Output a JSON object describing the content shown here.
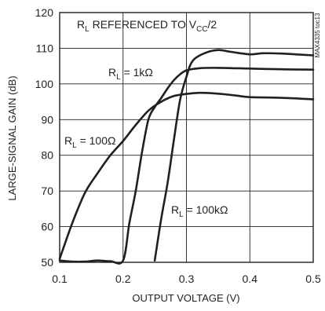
{
  "chart_data": {
    "type": "line",
    "xlabel": "OUTPUT VOLTAGE (V)",
    "ylabel": "LARGE-SIGNAL GAIN (dB)",
    "xlim": [
      0.1,
      0.5
    ],
    "ylim": [
      50,
      120
    ],
    "x_ticks": [
      "0.1",
      "0.2",
      "0.3",
      "0.4",
      "0.5"
    ],
    "y_ticks": [
      "50",
      "60",
      "70",
      "80",
      "90",
      "100",
      "110",
      "120"
    ],
    "grid": true,
    "side_label": "MAX4335 toc13",
    "annotation": {
      "r": "R",
      "r_sub": "L",
      "middle": " REFERENCED TO V",
      "v_sub": "CC",
      "tail": "/2"
    },
    "series": [
      {
        "label_main": "R",
        "label_sub": "L",
        "label_value": " = 100Ω",
        "color": "#231f20",
        "x": [
          0.1,
          0.12,
          0.14,
          0.16,
          0.18,
          0.2,
          0.22,
          0.24,
          0.26,
          0.28,
          0.3,
          0.32,
          0.34,
          0.36,
          0.38,
          0.4,
          0.45,
          0.5
        ],
        "y": [
          51,
          61,
          69.5,
          75,
          80,
          84,
          88.5,
          92.5,
          95,
          96.6,
          97.2,
          97.5,
          97.4,
          97.1,
          96.7,
          96.3,
          96.1,
          95.7
        ]
      },
      {
        "label_main": "R",
        "label_sub": "L",
        "label_value": " = 1kΩ",
        "color": "#231f20",
        "x": [
          0.1,
          0.12,
          0.14,
          0.16,
          0.18,
          0.2,
          0.21,
          0.22,
          0.23,
          0.24,
          0.25,
          0.26,
          0.27,
          0.28,
          0.29,
          0.3,
          0.32,
          0.35,
          0.4,
          0.45,
          0.5
        ],
        "y": [
          50.5,
          50.2,
          50.2,
          50.5,
          50.3,
          50.5,
          61,
          70,
          81,
          90,
          93.5,
          96,
          98.7,
          101,
          102.7,
          103.8,
          104.4,
          104.5,
          104.3,
          104.1,
          104
        ]
      },
      {
        "label_main": "R",
        "label_sub": "L",
        "label_value": " = 100kΩ",
        "color": "#231f20",
        "x": [
          0.25,
          0.26,
          0.27,
          0.28,
          0.29,
          0.3,
          0.31,
          0.33,
          0.35,
          0.37,
          0.4,
          0.42,
          0.45,
          0.48,
          0.5
        ],
        "y": [
          50.5,
          62,
          72,
          84,
          95.5,
          102,
          106.5,
          108.7,
          109.5,
          109,
          108.3,
          108.6,
          108.5,
          108.2,
          108
        ]
      }
    ]
  }
}
